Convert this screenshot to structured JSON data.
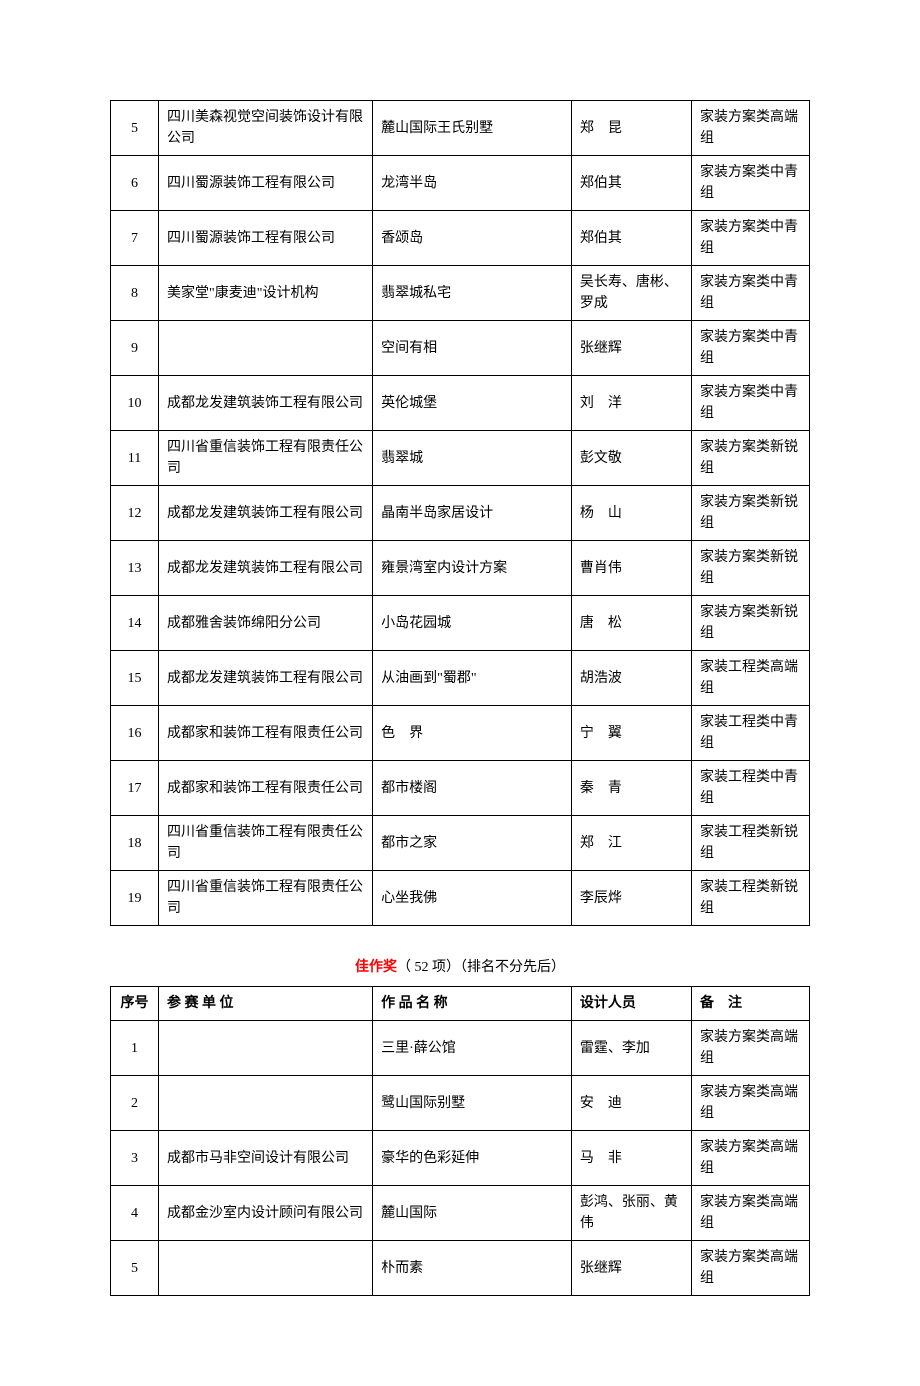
{
  "table1": {
    "rows": [
      {
        "num": "5",
        "org": "四川美森视觉空间装饰设计有限公司",
        "proj": "麓山国际王氏别墅",
        "person": "郑　昆",
        "note": "家装方案类高端组"
      },
      {
        "num": "6",
        "org": "四川蜀源装饰工程有限公司",
        "proj": "龙湾半岛",
        "person": "郑伯其",
        "note": "家装方案类中青组"
      },
      {
        "num": "7",
        "org": "四川蜀源装饰工程有限公司",
        "proj": "香颂岛",
        "person": "郑伯其",
        "note": "家装方案类中青组"
      },
      {
        "num": "8",
        "org": "美家堂\"康麦迪\"设计机构",
        "proj": "翡翠城私宅",
        "person": "吴长寿、唐彬、罗成",
        "note": "家装方案类中青组"
      },
      {
        "num": "9",
        "org": "",
        "proj": "空间有相",
        "person": "张继辉",
        "note": "家装方案类中青组"
      },
      {
        "num": "10",
        "org": "成都龙发建筑装饰工程有限公司",
        "proj": "英伦城堡",
        "person": "刘　洋",
        "note": "家装方案类中青组"
      },
      {
        "num": "11",
        "org": "四川省重信装饰工程有限责任公司",
        "proj": "翡翠城",
        "person": "彭文敬",
        "note": "家装方案类新锐组"
      },
      {
        "num": "12",
        "org": "成都龙发建筑装饰工程有限公司",
        "proj": "晶南半岛家居设计",
        "person": "杨　山",
        "note": "家装方案类新锐组"
      },
      {
        "num": "13",
        "org": "成都龙发建筑装饰工程有限公司",
        "proj": "雍景湾室内设计方案",
        "person": "曹肖伟",
        "note": "家装方案类新锐组"
      },
      {
        "num": "14",
        "org": "成都雅舍装饰绵阳分公司",
        "proj": "小岛花园城",
        "person": "唐　松",
        "note": "家装方案类新锐组"
      },
      {
        "num": "15",
        "org": "成都龙发建筑装饰工程有限公司",
        "proj": "从油画到\"蜀郡\"",
        "person": "胡浩波",
        "note": "家装工程类高端组"
      },
      {
        "num": "16",
        "org": "成都家和装饰工程有限责任公司",
        "proj": "色　界",
        "person": "宁　翼",
        "note": "家装工程类中青组"
      },
      {
        "num": "17",
        "org": "成都家和装饰工程有限责任公司",
        "proj": "都市楼阁",
        "person": "秦　青",
        "note": "家装工程类中青组"
      },
      {
        "num": "18",
        "org": "四川省重信装饰工程有限责任公司",
        "proj": "都市之家",
        "person": "郑　江",
        "note": "家装工程类新锐组"
      },
      {
        "num": "19",
        "org": "四川省重信装饰工程有限责任公司",
        "proj": "心坐我佛",
        "person": "李辰烨",
        "note": "家装工程类新锐组"
      }
    ]
  },
  "section2": {
    "award": "佳作奖",
    "count": "（ 52 项）（排名不分先后）"
  },
  "table2": {
    "headers": {
      "num": "序号",
      "org": "参 赛 单 位",
      "proj": "作 品 名 称",
      "person": "设计人员",
      "note": "备　注"
    },
    "rows": [
      {
        "num": "1",
        "org": "",
        "proj": "三里·薛公馆",
        "person": "雷霆、李加",
        "note": "家装方案类高端组"
      },
      {
        "num": "2",
        "org": "",
        "proj": "鹭山国际别墅",
        "person": "安　迪",
        "note": "家装方案类高端组"
      },
      {
        "num": "3",
        "org": "成都市马非空间设计有限公司",
        "proj": "豪华的色彩延伸",
        "person": "马　非",
        "note": "家装方案类高端组"
      },
      {
        "num": "4",
        "org": "成都金沙室内设计顾问有限公司",
        "proj": "麓山国际",
        "person": "彭鸿、张丽、黄伟",
        "note": "家装方案类高端组"
      },
      {
        "num": "5",
        "org": "",
        "proj": "朴而素",
        "person": "张继辉",
        "note": "家装方案类高端组"
      }
    ]
  }
}
